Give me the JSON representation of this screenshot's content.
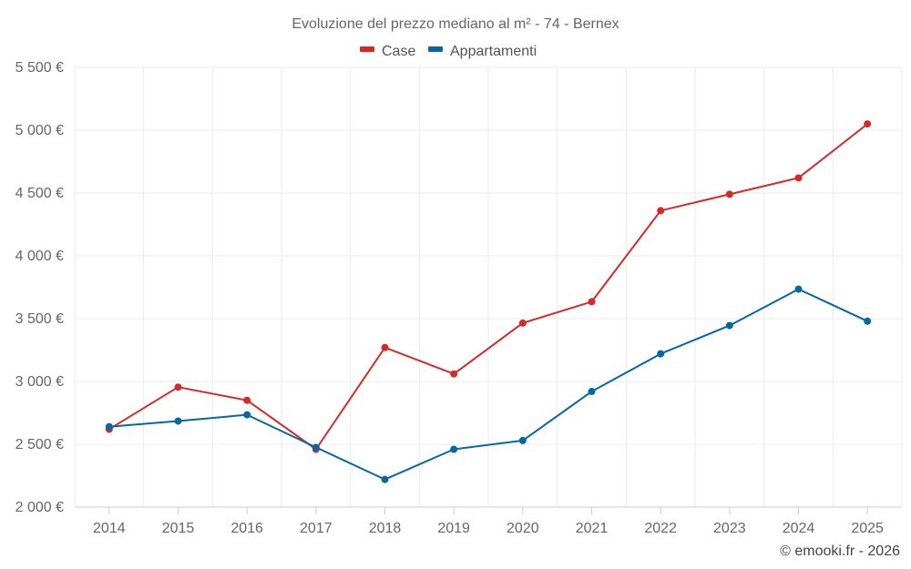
{
  "chart_data": {
    "type": "line",
    "title": "Evoluzione del prezzo mediano al m² - 74 - Bernex",
    "categories": [
      "2014",
      "2015",
      "2016",
      "2017",
      "2018",
      "2019",
      "2020",
      "2021",
      "2022",
      "2023",
      "2024",
      "2025"
    ],
    "series": [
      {
        "name": "Case",
        "color": "#d42a2a",
        "values": [
          2620,
          2955,
          2850,
          2460,
          3270,
          3060,
          3465,
          3635,
          4360,
          4490,
          4620,
          5050
        ]
      },
      {
        "name": "Appartamenti",
        "color": "#07689f",
        "values": [
          2640,
          2685,
          2735,
          2475,
          2220,
          2460,
          2530,
          2920,
          3220,
          3445,
          3735,
          3480
        ]
      }
    ],
    "ylim": [
      2000,
      5500
    ],
    "yticks": [
      2000,
      2500,
      3000,
      3500,
      4000,
      4500,
      5000,
      5500
    ],
    "ytick_labels": [
      "2 000 €",
      "2 500 €",
      "3 000 €",
      "3 500 €",
      "4 000 €",
      "4 500 €",
      "5 000 €",
      "5 500 €"
    ],
    "xlabel": "",
    "ylabel": "",
    "grid": true,
    "legend_position": "top-center"
  },
  "credit": "© emooki.fr - 2026"
}
